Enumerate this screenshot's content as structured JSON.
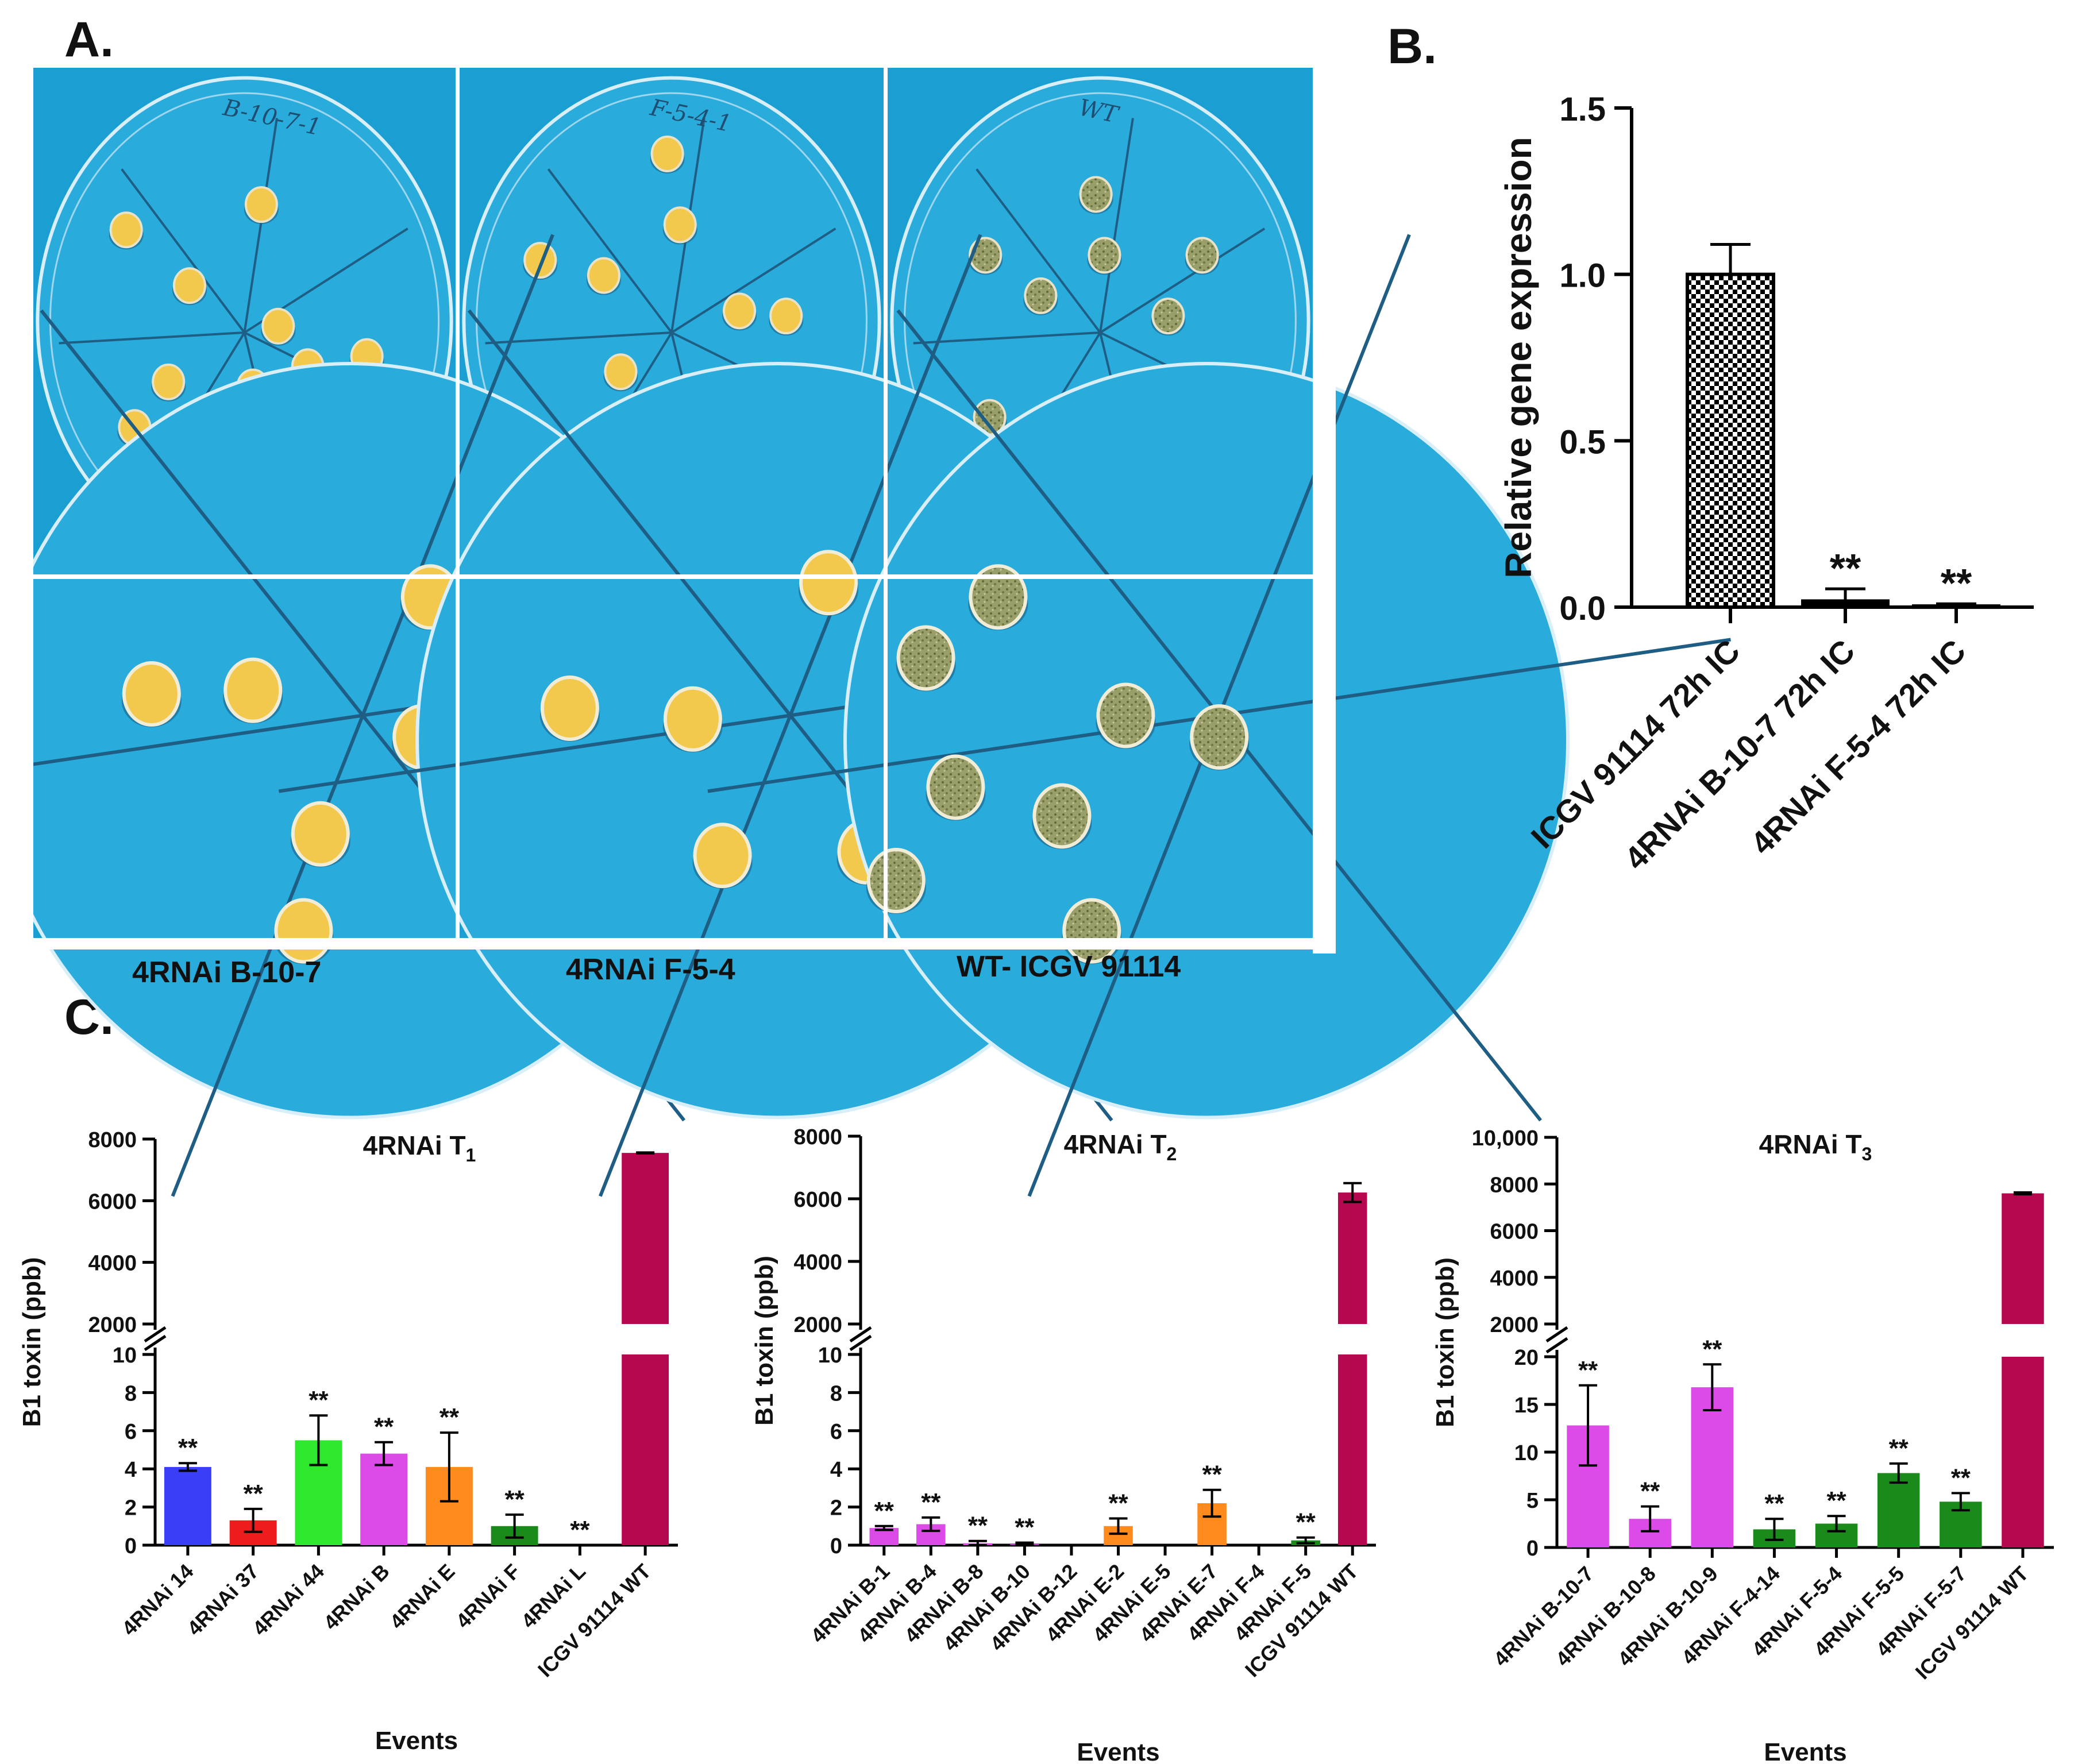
{
  "panels": {
    "a": {
      "letter": "A.",
      "labels": [
        "4RNAi B-10-7",
        "4RNAi F-5-4",
        "WT- ICGV 91114"
      ]
    },
    "b": {
      "letter": "B."
    },
    "c": {
      "letter": "C."
    }
  },
  "plate_photos": {
    "background": "#1b9fd2",
    "plate_marks": [
      "B-10-7-1",
      "F-5-4-1",
      "WT"
    ]
  },
  "chart_data": [
    {
      "id": "B",
      "type": "bar",
      "title": "",
      "ylabel": "Relative gene expression",
      "xlabel": "",
      "ylim": [
        0,
        1.5
      ],
      "yticks": [
        "0.0",
        "0.5",
        "1.0",
        "1.5"
      ],
      "categories": [
        "ICGV 91114 72h IC",
        "4RNAi B-10-7 72h IC",
        "4RNAi F-5-4 72h IC"
      ],
      "values": [
        1.0,
        0.02,
        0.005
      ],
      "errors": [
        0.09,
        0.035,
        0.005
      ],
      "significance": [
        "",
        "**",
        "**"
      ],
      "colors": [
        "#000000",
        "#000000",
        "#000000"
      ]
    },
    {
      "id": "C1",
      "type": "bar",
      "title": "4RNAi T",
      "title_sub": "1",
      "xlabel": "Events",
      "ylabel": "B1 toxin (ppb)",
      "lower_ylim": [
        0,
        10
      ],
      "lower_ticks": [
        "0",
        "2",
        "4",
        "6",
        "8",
        "10"
      ],
      "upper_ylim": [
        2000,
        8000
      ],
      "upper_ticks": [
        "2000",
        "4000",
        "6000",
        "8000"
      ],
      "categories": [
        "4RNAi 14",
        "4RNAi 37",
        "4RNAi 44",
        "4RNAi B",
        "4RNAi E",
        "4RNAi F",
        "4RNAi L",
        "ICGV 91114 WT"
      ],
      "values": [
        4.1,
        1.3,
        5.5,
        4.8,
        4.1,
        1.0,
        0,
        7550
      ],
      "errors": [
        0.2,
        0.6,
        1.3,
        0.6,
        1.8,
        0.6,
        0,
        15
      ],
      "significance": [
        "**",
        "**",
        "**",
        "**",
        "**",
        "**",
        "**",
        ""
      ],
      "colors": [
        "#3a3ff5",
        "#ee1c1c",
        "#2ee82e",
        "#dc4be8",
        "#ff8a1d",
        "#1a8a1a",
        "#1a8a1a",
        "#b5084e"
      ]
    },
    {
      "id": "C2",
      "type": "bar",
      "title": "4RNAi T",
      "title_sub": "2",
      "xlabel": "Events",
      "ylabel": "B1 toxin (ppb)",
      "lower_ylim": [
        0,
        10
      ],
      "lower_ticks": [
        "0",
        "2",
        "4",
        "6",
        "8",
        "10"
      ],
      "upper_ylim": [
        2000,
        8000
      ],
      "upper_ticks": [
        "2000",
        "4000",
        "6000",
        "8000"
      ],
      "categories": [
        "4RNAi B-1",
        "4RNAi B-4",
        "4RNAi B-8",
        "4RNAi B-10",
        "4RNAi B-12",
        "4RNAi E-2",
        "4RNAi E-5",
        "4RNAi E-7",
        "4RNAi F-4",
        "4RNAi F-5",
        "ICGV 91114 WT"
      ],
      "values": [
        0.9,
        1.1,
        0.1,
        0.05,
        0,
        1.0,
        0,
        2.2,
        0,
        0.25,
        6200
      ],
      "errors": [
        0.1,
        0.35,
        0.12,
        0.08,
        0,
        0.4,
        0,
        0.7,
        0,
        0.15,
        300
      ],
      "significance": [
        "**",
        "**",
        "**",
        "**",
        "",
        "**",
        "",
        "**",
        "",
        "**",
        ""
      ],
      "colors": [
        "#dc4be8",
        "#dc4be8",
        "#dc4be8",
        "#dc4be8",
        "#dc4be8",
        "#ff8a1d",
        "#ff8a1d",
        "#ff8a1d",
        "#1a8a1a",
        "#1a8a1a",
        "#b5084e"
      ]
    },
    {
      "id": "C3",
      "type": "bar",
      "title": "4RNAi T",
      "title_sub": "3",
      "xlabel": "Events",
      "ylabel": "B1 toxin (ppb)",
      "lower_ylim": [
        0,
        20
      ],
      "lower_ticks": [
        "0",
        "5",
        "10",
        "15",
        "20"
      ],
      "upper_ylim": [
        2000,
        10000
      ],
      "upper_ticks": [
        "2000",
        "4000",
        "6000",
        "8000",
        "10,000"
      ],
      "categories": [
        "4RNAi B-10-7",
        "4RNAi B-10-8",
        "4RNAi B-10-9",
        "4RNAi F-4-14",
        "4RNAi F-5-4",
        "4RNAi F-5-5",
        "4RNAi F-5-7",
        "ICGV 91114 WT"
      ],
      "values": [
        12.8,
        3.0,
        16.8,
        1.9,
        2.5,
        7.8,
        4.8,
        7600
      ],
      "errors": [
        4.2,
        1.3,
        2.4,
        1.1,
        0.8,
        1.0,
        0.9,
        40
      ],
      "significance": [
        "**",
        "**",
        "**",
        "**",
        "**",
        "**",
        "**",
        ""
      ],
      "colors": [
        "#dc4be8",
        "#dc4be8",
        "#dc4be8",
        "#1a8a1a",
        "#1a8a1a",
        "#1a8a1a",
        "#1a8a1a",
        "#b5084e"
      ]
    }
  ]
}
